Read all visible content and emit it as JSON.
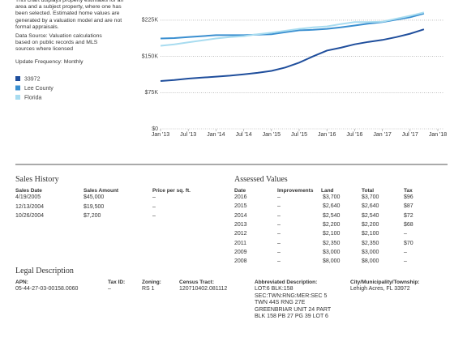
{
  "chart_data": {
    "type": "line",
    "description": "This chart displays property estimates for an area and a subject property, where one has been selected. Estimated home values are generated by a valuation model and are not formal appraisals.",
    "data_source": "Data Source: Valuation calculations based on public records and MLS sources where licensed",
    "update_frequency": "Update Frequency: Monthly",
    "x": [
      "2013-01",
      "2013-04",
      "2013-07",
      "2013-10",
      "2014-01",
      "2014-04",
      "2014-07",
      "2014-10",
      "2015-01",
      "2015-04",
      "2015-07",
      "2015-10",
      "2016-01",
      "2016-04",
      "2016-07",
      "2016-10",
      "2017-01",
      "2017-04",
      "2017-07",
      "2017-10"
    ],
    "series": [
      {
        "name": "33972",
        "color": "#1f4e9c",
        "values": [
          99000,
          101000,
          104000,
          106000,
          108000,
          110000,
          113000,
          116000,
          120000,
          127000,
          137000,
          150000,
          162000,
          168000,
          175000,
          180000,
          184000,
          190000,
          197000,
          206000
        ]
      },
      {
        "name": "Lee County",
        "color": "#3a8fd0",
        "values": [
          187000,
          188000,
          190000,
          192000,
          194000,
          194000,
          194000,
          195000,
          196000,
          200000,
          204000,
          205000,
          207000,
          210000,
          214000,
          218000,
          221000,
          226000,
          231000,
          239000
        ]
      },
      {
        "name": "Florida",
        "color": "#a8dcf0",
        "values": [
          172000,
          175000,
          179000,
          183000,
          187000,
          190000,
          192000,
          196000,
          199000,
          203000,
          207000,
          210000,
          212000,
          217000,
          221000,
          221000,
          222000,
          228000,
          234000,
          241000
        ]
      }
    ],
    "xlim": [
      "2013-01",
      "2018-01"
    ],
    "xticks": [
      {
        "value": "2013-01",
        "label": "Jan '13"
      },
      {
        "value": "2013-07",
        "label": "Jul '13"
      },
      {
        "value": "2014-01",
        "label": "Jan '14"
      },
      {
        "value": "2014-07",
        "label": "Jul '14"
      },
      {
        "value": "2015-01",
        "label": "Jan '15"
      },
      {
        "value": "2015-07",
        "label": "Jul '15"
      },
      {
        "value": "2016-01",
        "label": "Jan '16"
      },
      {
        "value": "2016-07",
        "label": "Jul '16"
      },
      {
        "value": "2017-01",
        "label": "Jan '17"
      },
      {
        "value": "2017-07",
        "label": "Jul '17"
      },
      {
        "value": "2018-01",
        "label": "Jan '18"
      }
    ],
    "ylim": [
      0,
      250000
    ],
    "yticks": [
      {
        "value": 0,
        "label": "$0"
      },
      {
        "value": 75000,
        "label": "$75K"
      },
      {
        "value": 150000,
        "label": "$150K"
      },
      {
        "value": 225000,
        "label": "$225K"
      }
    ],
    "grid": true
  },
  "sales_history": {
    "title": "Sales History",
    "columns": [
      "Sales Date",
      "Sales Amount",
      "Price per sq. ft."
    ],
    "rows": [
      [
        "4/19/2005",
        "$45,000",
        "–"
      ],
      [
        "12/13/2004",
        "$19,500",
        "–"
      ],
      [
        "10/26/2004",
        "$7,200",
        "–"
      ]
    ]
  },
  "assessed_values": {
    "title": "Assessed Values",
    "columns": [
      "Date",
      "Improvements",
      "Land",
      "Total",
      "Tax"
    ],
    "rows": [
      [
        "2016",
        "–",
        "$3,700",
        "$3,700",
        "$96"
      ],
      [
        "2015",
        "–",
        "$2,640",
        "$2,640",
        "$87"
      ],
      [
        "2014",
        "–",
        "$2,540",
        "$2,540",
        "$72"
      ],
      [
        "2013",
        "–",
        "$2,200",
        "$2,200",
        "$68"
      ],
      [
        "2012",
        "–",
        "$2,100",
        "$2,100",
        "–"
      ],
      [
        "2011",
        "–",
        "$2,350",
        "$2,350",
        "$70"
      ],
      [
        "2009",
        "–",
        "$3,000",
        "$3,000",
        "–"
      ],
      [
        "2008",
        "–",
        "$8,000",
        "$8,000",
        "–"
      ]
    ]
  },
  "legal_description": {
    "title": "Legal Description",
    "fields": [
      {
        "label": "APN:",
        "value": [
          "05-44-27-03-00158.0060"
        ]
      },
      {
        "label": "Tax ID:",
        "value": [
          "–"
        ]
      },
      {
        "label": "Zoning:",
        "value": [
          "RS 1"
        ]
      },
      {
        "label": "Census Tract:",
        "value": [
          "120710402.081112"
        ]
      },
      {
        "label": "Abbreviated Description:",
        "value": [
          "LOT:6 BLK:158",
          "SEC:TWN:RNG:MER:SEC 5",
          "TWN 44S RNG 27E",
          "GREENBRIAR UNIT 24 PART",
          "BLK 158 PB 27 PG 39 LOT 6"
        ]
      },
      {
        "label": "City/Municipality/Township:",
        "value": [
          "Lehigh Acres, FL 33972"
        ]
      }
    ]
  }
}
